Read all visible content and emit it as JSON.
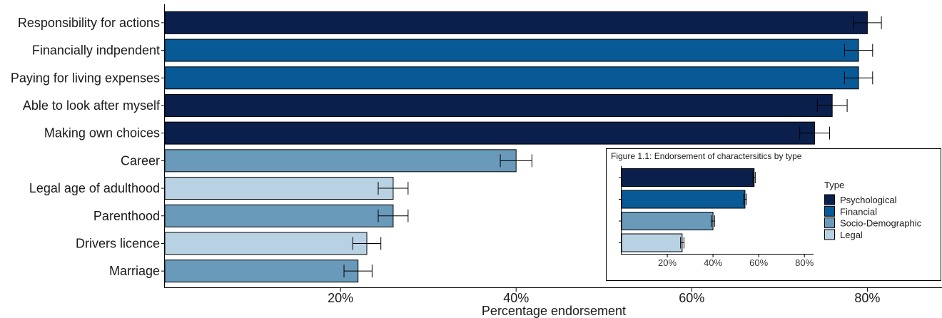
{
  "chart_data": [
    {
      "type": "bar",
      "orientation": "horizontal",
      "title": "",
      "xlabel": "Percentage endorsement",
      "ylabel": "",
      "xlim": [
        0,
        88.5
      ],
      "x_ticks": [
        {
          "value": 20,
          "label": "20%"
        },
        {
          "value": 40,
          "label": "40%"
        },
        {
          "value": 60,
          "label": "60%"
        },
        {
          "value": 80,
          "label": "80%"
        }
      ],
      "grid": false,
      "error_bars": true,
      "bars": [
        {
          "label": "Responsibility for actions",
          "value": 80,
          "err_low": 78.4,
          "err_high": 81.6,
          "type": "Psychological"
        },
        {
          "label": "Financially indpendent",
          "value": 79,
          "err_low": 77.4,
          "err_high": 80.6,
          "type": "Financial"
        },
        {
          "label": "Paying for living expenses",
          "value": 79,
          "err_low": 77.4,
          "err_high": 80.6,
          "type": "Financial"
        },
        {
          "label": "Able to look after myself",
          "value": 76,
          "err_low": 74.3,
          "err_high": 77.7,
          "type": "Psychological"
        },
        {
          "label": "Making own choices",
          "value": 74,
          "err_low": 72.3,
          "err_high": 75.7,
          "type": "Psychological"
        },
        {
          "label": "Career",
          "value": 40,
          "err_low": 38.2,
          "err_high": 41.8,
          "type": "Socio-Demographic"
        },
        {
          "label": "Legal age of adulthood",
          "value": 26,
          "err_low": 24.3,
          "err_high": 27.7,
          "type": "Legal"
        },
        {
          "label": "Parenthood",
          "value": 26,
          "err_low": 24.3,
          "err_high": 27.7,
          "type": "Socio-Demographic"
        },
        {
          "label": "Drivers licence",
          "value": 23,
          "err_low": 21.4,
          "err_high": 24.6,
          "type": "Legal"
        },
        {
          "label": "Marriage",
          "value": 22,
          "err_low": 20.4,
          "err_high": 23.6,
          "type": "Socio-Demographic"
        }
      ]
    },
    {
      "type": "bar",
      "orientation": "horizontal",
      "title": "Figure 1.1: Endorsement of charactersitics by type",
      "xlim": [
        0,
        84
      ],
      "x_ticks": [
        {
          "value": 20,
          "label": "20%"
        },
        {
          "value": 40,
          "label": "40%"
        },
        {
          "value": 60,
          "label": "60%"
        },
        {
          "value": 80,
          "label": "80%"
        }
      ],
      "error_bars": true,
      "bars": [
        {
          "type": "Psychological",
          "value": 58,
          "err_low": 57.5,
          "err_high": 58.5
        },
        {
          "type": "Financial",
          "value": 54,
          "err_low": 53.5,
          "err_high": 54.6
        },
        {
          "type": "Socio-Demographic",
          "value": 40,
          "err_low": 39.3,
          "err_high": 40.7
        },
        {
          "type": "Legal",
          "value": 26.5,
          "err_low": 25.8,
          "err_high": 27.3
        }
      ],
      "legend": {
        "title": "Type",
        "placement": "right",
        "entries": [
          "Psychological",
          "Financial",
          "Socio-Demographic",
          "Legal"
        ]
      }
    }
  ],
  "colors": {
    "Psychological": "#0a1f4b",
    "Financial": "#075a96",
    "Socio-Demographic": "#6a9aba",
    "Legal": "#b8d2e4"
  }
}
